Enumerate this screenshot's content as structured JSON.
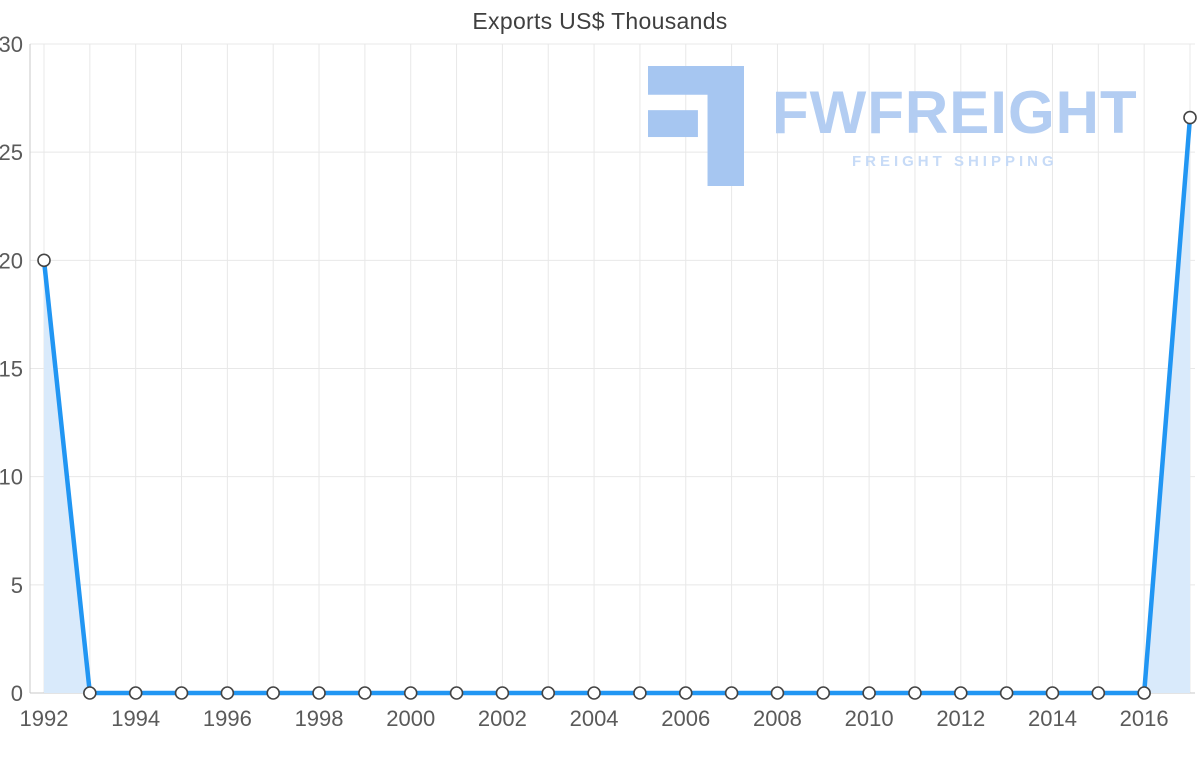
{
  "chart_data": {
    "type": "area",
    "title": "Exports US$ Thousands",
    "x": [
      1992,
      1993,
      1994,
      1995,
      1996,
      1997,
      1998,
      1999,
      2000,
      2001,
      2002,
      2003,
      2004,
      2005,
      2006,
      2007,
      2008,
      2009,
      2010,
      2011,
      2012,
      2013,
      2014,
      2015,
      2016,
      2017
    ],
    "series": [
      {
        "name": "Exports",
        "values": [
          20,
          0,
          0,
          0,
          0,
          0,
          0,
          0,
          0,
          0,
          0,
          0,
          0,
          0,
          0,
          0,
          0,
          0,
          0,
          0,
          0,
          0,
          0,
          0,
          0,
          26.6
        ]
      }
    ],
    "ylim": [
      0,
      30
    ],
    "yticks": [
      0,
      5,
      10,
      15,
      20,
      25,
      30
    ],
    "xticks": [
      1992,
      1994,
      1996,
      1998,
      2000,
      2002,
      2004,
      2006,
      2008,
      2010,
      2012,
      2014,
      2016
    ],
    "grid": true,
    "legend": "none",
    "colors": {
      "line": "#2196f3",
      "area": "#d9eafb",
      "grid": "#e8e8e8",
      "axis": "#c9c9c9",
      "marker_fill": "#ffffff",
      "marker_stroke": "#444444",
      "tick_text": "#5a5a5a",
      "title_text": "#3f3f3f"
    }
  },
  "watermark": {
    "text": "FWFREIGHT",
    "subtext": "FREIGHT SHIPPING",
    "logo_color": "#a6c6f1"
  }
}
